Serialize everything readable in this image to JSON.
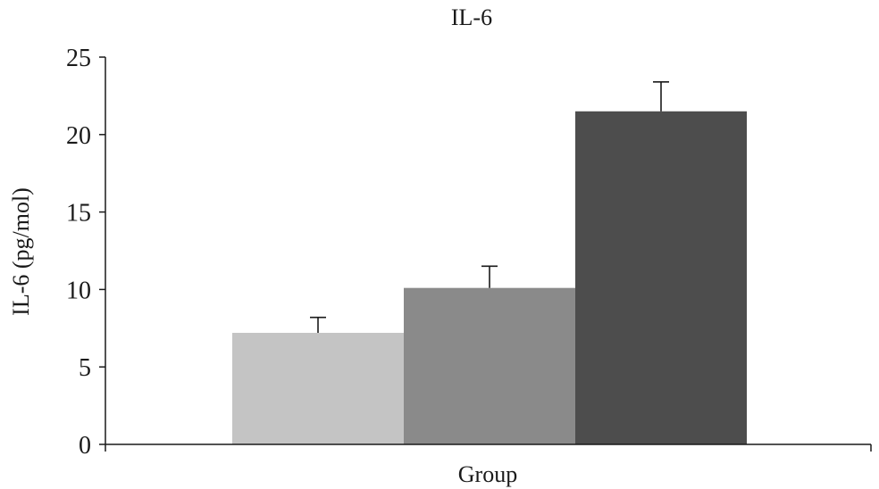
{
  "chart_data": {
    "type": "bar",
    "title": "IL-6",
    "xlabel": "Group",
    "ylabel": "IL-6 (pg/mol)",
    "ylim": [
      0,
      25
    ],
    "yticks": [
      0,
      5,
      10,
      15,
      20,
      25
    ],
    "grid": false,
    "legend": "none",
    "series": [
      {
        "values": [
          7.2
        ],
        "error": [
          1.0
        ],
        "color": "#c4c4c4"
      },
      {
        "values": [
          10.1
        ],
        "error": [
          1.4
        ],
        "color": "#8a8a8a"
      },
      {
        "values": [
          21.5
        ],
        "error": [
          1.9
        ],
        "color": "#4d4d4d"
      }
    ]
  }
}
